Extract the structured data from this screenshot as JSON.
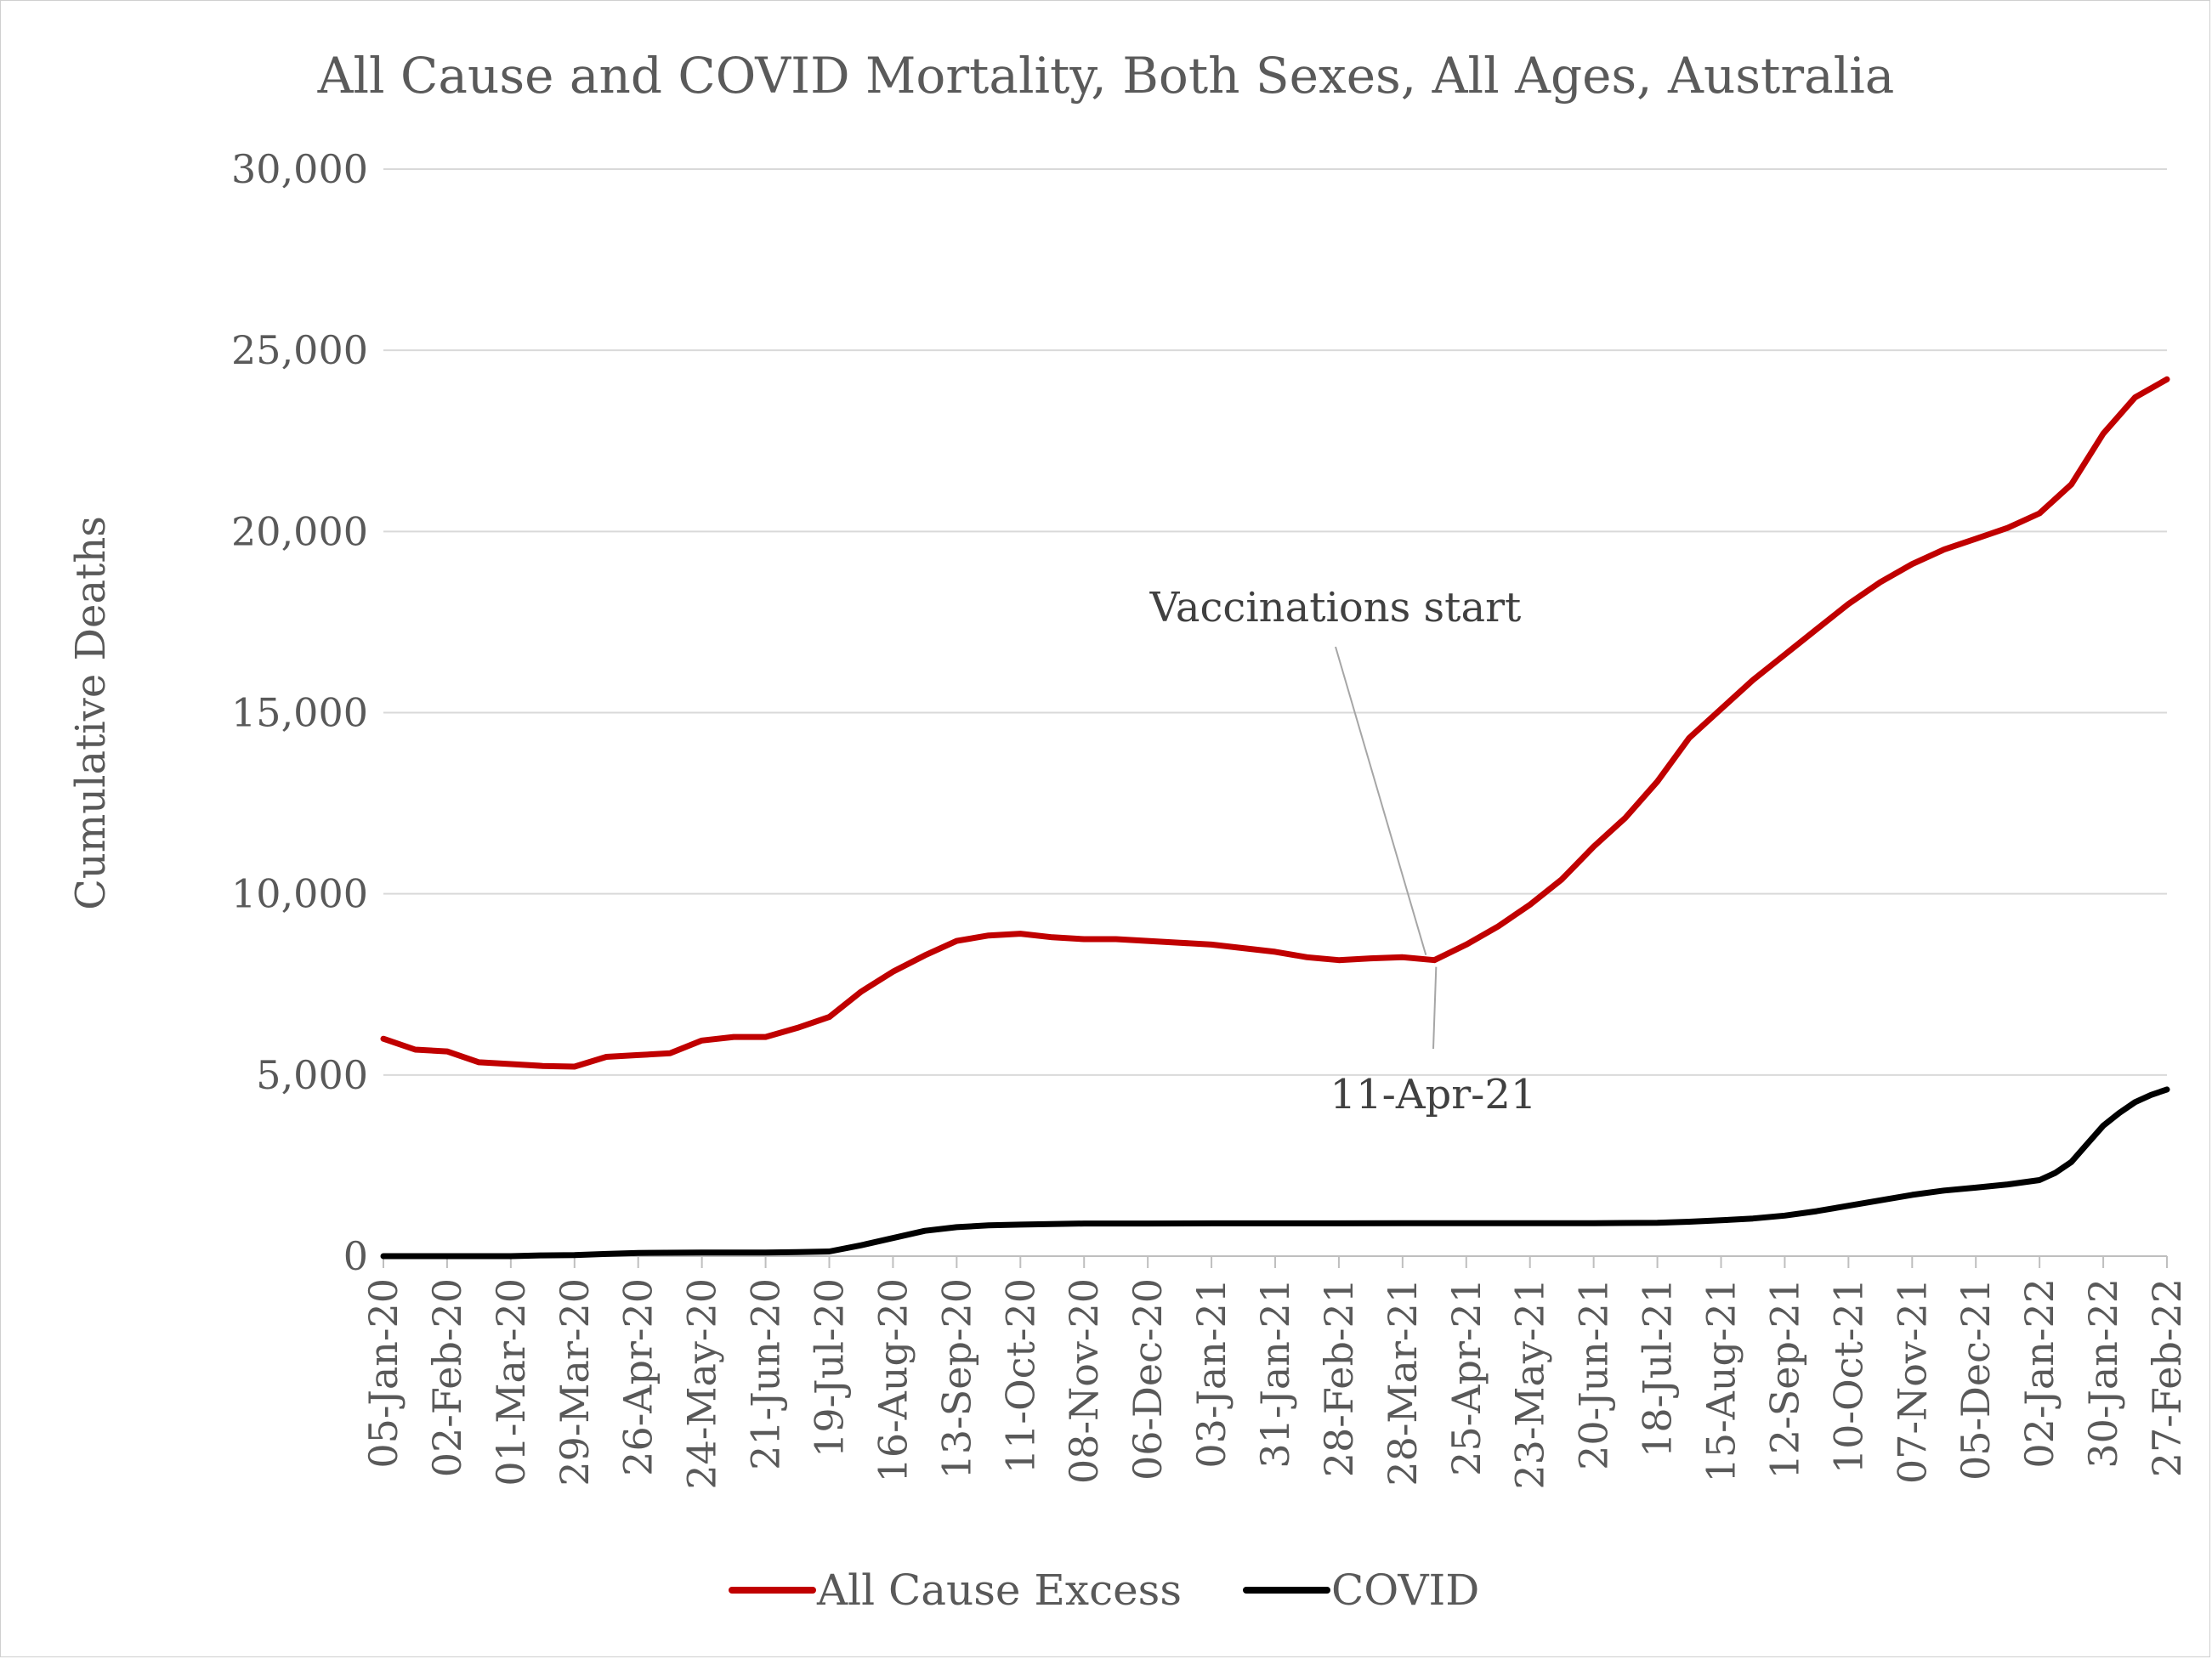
{
  "chart_data": {
    "type": "line",
    "title": "All Cause and COVID Mortality, Both Sexes, All Ages, Australia",
    "ylabel": "Cumulative Deaths",
    "xlabel": "",
    "ylim": [
      0,
      30000
    ],
    "y_ticks": [
      "0",
      "5,000",
      "10,000",
      "15,000",
      "20,000",
      "25,000",
      "30,000"
    ],
    "y_tick_values": [
      0,
      5000,
      10000,
      15000,
      20000,
      25000,
      30000
    ],
    "x_ticks": [
      "05-Jan-20",
      "02-Feb-20",
      "01-Mar-20",
      "29-Mar-20",
      "26-Apr-20",
      "24-May-20",
      "21-Jun-20",
      "19-Jul-20",
      "16-Aug-20",
      "13-Sep-20",
      "11-Oct-20",
      "08-Nov-20",
      "06-Dec-20",
      "03-Jan-21",
      "31-Jan-21",
      "28-Feb-21",
      "28-Mar-21",
      "25-Apr-21",
      "23-May-21",
      "20-Jun-21",
      "18-Jul-21",
      "15-Aug-21",
      "12-Sep-21",
      "10-Oct-21",
      "07-Nov-21",
      "05-Dec-21",
      "02-Jan-22",
      "30-Jan-22",
      "27-Feb-22"
    ],
    "grid": true,
    "legend_position": "bottom",
    "series": [
      {
        "name": "All Cause Excess",
        "color": "#c00000",
        "points": [
          [
            "05-Jan-20",
            6000
          ],
          [
            "19-Jan-20",
            5700
          ],
          [
            "02-Feb-20",
            5650
          ],
          [
            "16-Feb-20",
            5350
          ],
          [
            "01-Mar-20",
            5300
          ],
          [
            "15-Mar-20",
            5250
          ],
          [
            "29-Mar-20",
            5230
          ],
          [
            "12-Apr-20",
            5500
          ],
          [
            "26-Apr-20",
            5550
          ],
          [
            "10-May-20",
            5600
          ],
          [
            "24-May-20",
            5950
          ],
          [
            "07-Jun-20",
            6050
          ],
          [
            "21-Jun-20",
            6050
          ],
          [
            "05-Jul-20",
            6300
          ],
          [
            "19-Jul-20",
            6600
          ],
          [
            "02-Aug-20",
            7300
          ],
          [
            "16-Aug-20",
            7850
          ],
          [
            "30-Aug-20",
            8300
          ],
          [
            "13-Sep-20",
            8700
          ],
          [
            "27-Sep-20",
            8850
          ],
          [
            "11-Oct-20",
            8900
          ],
          [
            "25-Oct-20",
            8800
          ],
          [
            "08-Nov-20",
            8750
          ],
          [
            "22-Nov-20",
            8750
          ],
          [
            "06-Dec-20",
            8700
          ],
          [
            "20-Dec-20",
            8650
          ],
          [
            "03-Jan-21",
            8600
          ],
          [
            "17-Jan-21",
            8500
          ],
          [
            "31-Jan-21",
            8400
          ],
          [
            "14-Feb-21",
            8250
          ],
          [
            "28-Feb-21",
            8170
          ],
          [
            "14-Mar-21",
            8220
          ],
          [
            "28-Mar-21",
            8250
          ],
          [
            "11-Apr-21",
            8170
          ],
          [
            "25-Apr-21",
            8600
          ],
          [
            "09-May-21",
            9100
          ],
          [
            "23-May-21",
            9700
          ],
          [
            "06-Jun-21",
            10400
          ],
          [
            "20-Jun-21",
            11300
          ],
          [
            "04-Jul-21",
            12100
          ],
          [
            "18-Jul-21",
            13100
          ],
          [
            "01-Aug-21",
            14300
          ],
          [
            "15-Aug-21",
            15100
          ],
          [
            "29-Aug-21",
            15900
          ],
          [
            "12-Sep-21",
            16600
          ],
          [
            "26-Sep-21",
            17300
          ],
          [
            "10-Oct-21",
            18000
          ],
          [
            "24-Oct-21",
            18600
          ],
          [
            "07-Nov-21",
            19100
          ],
          [
            "21-Nov-21",
            19500
          ],
          [
            "05-Dec-21",
            19800
          ],
          [
            "19-Dec-21",
            20100
          ],
          [
            "02-Jan-22",
            20500
          ],
          [
            "16-Jan-22",
            21300
          ],
          [
            "30-Jan-22",
            22700
          ],
          [
            "13-Feb-22",
            23700
          ],
          [
            "27-Feb-22",
            24200
          ]
        ]
      },
      {
        "name": "COVID",
        "color": "#000000",
        "points": [
          [
            "05-Jan-20",
            0
          ],
          [
            "01-Mar-20",
            0
          ],
          [
            "15-Mar-20",
            20
          ],
          [
            "29-Mar-20",
            30
          ],
          [
            "12-Apr-20",
            60
          ],
          [
            "26-Apr-20",
            90
          ],
          [
            "24-May-20",
            100
          ],
          [
            "21-Jun-20",
            100
          ],
          [
            "05-Jul-20",
            110
          ],
          [
            "19-Jul-20",
            130
          ],
          [
            "02-Aug-20",
            300
          ],
          [
            "16-Aug-20",
            500
          ],
          [
            "30-Aug-20",
            700
          ],
          [
            "13-Sep-20",
            800
          ],
          [
            "27-Sep-20",
            850
          ],
          [
            "11-Oct-20",
            870
          ],
          [
            "08-Nov-20",
            900
          ],
          [
            "06-Dec-20",
            900
          ],
          [
            "03-Jan-21",
            905
          ],
          [
            "28-Feb-21",
            905
          ],
          [
            "11-Apr-21",
            910
          ],
          [
            "23-May-21",
            910
          ],
          [
            "20-Jun-21",
            910
          ],
          [
            "18-Jul-21",
            920
          ],
          [
            "01-Aug-21",
            950
          ],
          [
            "15-Aug-21",
            990
          ],
          [
            "29-Aug-21",
            1040
          ],
          [
            "12-Sep-21",
            1120
          ],
          [
            "26-Sep-21",
            1240
          ],
          [
            "10-Oct-21",
            1390
          ],
          [
            "24-Oct-21",
            1540
          ],
          [
            "07-Nov-21",
            1690
          ],
          [
            "21-Nov-21",
            1810
          ],
          [
            "05-Dec-21",
            1890
          ],
          [
            "19-Dec-21",
            1980
          ],
          [
            "02-Jan-22",
            2100
          ],
          [
            "09-Jan-22",
            2300
          ],
          [
            "16-Jan-22",
            2600
          ],
          [
            "23-Jan-22",
            3100
          ],
          [
            "30-Jan-22",
            3600
          ],
          [
            "06-Feb-22",
            3950
          ],
          [
            "13-Feb-22",
            4250
          ],
          [
            "20-Feb-22",
            4450
          ],
          [
            "27-Feb-22",
            4600
          ]
        ]
      }
    ],
    "annotations": [
      {
        "text": "Vaccinations start",
        "x": "11-Apr-21",
        "y": 8170
      },
      {
        "text": "11-Apr-21",
        "x": "11-Apr-21",
        "y": 8170
      }
    ]
  }
}
